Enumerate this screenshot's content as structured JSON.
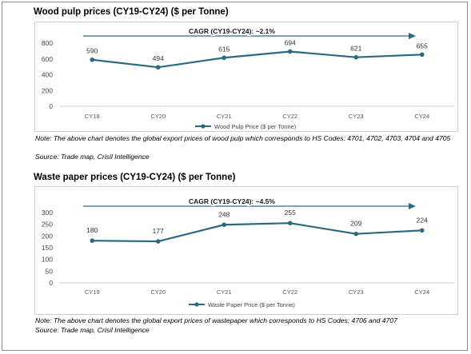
{
  "charts": [
    {
      "title": "Wood pulp prices (CY19-CY24)  ($ per Tonne)",
      "note": "Note: The above chart denotes the global export prices of wood pulp which corresponds to HS Codes: 4701, 4702, 4703, 4704 and 4705",
      "source": "Source: Trade map, Crisil Intelligence",
      "cagr_label": "CAGR  (CY19-CY24):  ~2.1%"
    },
    {
      "title": "Waste paper prices (CY19-CY24)  ($ per Tonne)",
      "note": "Note: The above chart denotes the global export prices of wastepaper which corresponds to HS Codes: 4706 and 4707",
      "source": "Source: Trade map, Crisil Intelligence",
      "cagr_label": "CAGR  (CY19-CY24):  ~4.5%"
    }
  ],
  "chart_data": [
    {
      "type": "line",
      "title": "Wood pulp prices (CY19-CY24)  ($ per Tonne)",
      "categories": [
        "CY19",
        "CY20",
        "CY21",
        "CY22",
        "CY23",
        "CY24"
      ],
      "series": [
        {
          "name": "Wood Pulp Price ($ per Tonne)",
          "values": [
            590,
            494,
            615,
            694,
            621,
            655
          ]
        }
      ],
      "yticks": [
        0,
        200,
        400,
        600,
        800
      ],
      "ylim": [
        0,
        800
      ],
      "legend": "bottom",
      "grid": false,
      "line_color": "#2a6a80"
    },
    {
      "type": "line",
      "title": "Waste paper prices (CY19-CY24)  ($ per Tonne)",
      "categories": [
        "CY19",
        "CY20",
        "CY21",
        "CY22",
        "CY23",
        "CY24"
      ],
      "series": [
        {
          "name": "Waste Paper Price ($ per Tonne)",
          "values": [
            180,
            177,
            248,
            255,
            209,
            224
          ]
        }
      ],
      "yticks": [
        0,
        50,
        100,
        150,
        200,
        250,
        300
      ],
      "ylim": [
        0,
        300
      ],
      "legend": "bottom",
      "grid": false,
      "line_color": "#2a6a80"
    }
  ]
}
